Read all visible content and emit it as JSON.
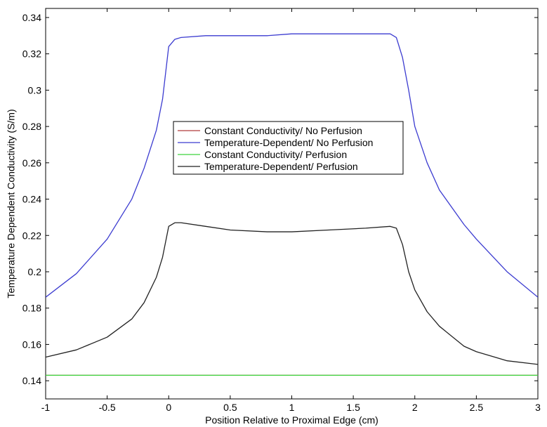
{
  "chart_data": {
    "type": "line",
    "xlabel": "Position Relative to Proximal Edge (cm)",
    "ylabel": "Temperature Dependent Conductivity (S/m)",
    "xlim": [
      -1,
      3
    ],
    "ylim": [
      0.13,
      0.345
    ],
    "xticks": [
      -1,
      -0.5,
      0,
      0.5,
      1,
      1.5,
      2,
      2.5,
      3
    ],
    "xtick_labels": [
      "-1",
      "-0.5",
      "0",
      "0.5",
      "1",
      "1.5",
      "2",
      "2.5",
      "3"
    ],
    "yticks": [
      0.14,
      0.16,
      0.18,
      0.2,
      0.22,
      0.24,
      0.26,
      0.28,
      0.3,
      0.32,
      0.34
    ],
    "ytick_labels": [
      "0.14",
      "0.16",
      "0.18",
      "0.2",
      "0.22",
      "0.24",
      "0.26",
      "0.28",
      "0.3",
      "0.32",
      "0.34"
    ],
    "grid": false,
    "legend_position": "center-left",
    "series": [
      {
        "name": "Constant Conductivity/ No Perfusion",
        "color": "#b03a3a",
        "x": [
          -1,
          3
        ],
        "y": [
          0.143,
          0.143
        ]
      },
      {
        "name": "Temperature-Dependent/ No Perfusion",
        "color": "#3b3bd0",
        "x": [
          -1,
          -0.75,
          -0.5,
          -0.3,
          -0.2,
          -0.1,
          -0.05,
          0,
          0.05,
          0.1,
          0.3,
          0.5,
          0.8,
          1.0,
          1.3,
          1.6,
          1.8,
          1.85,
          1.9,
          1.95,
          2.0,
          2.1,
          2.2,
          2.4,
          2.5,
          2.75,
          3
        ],
        "y": [
          0.186,
          0.199,
          0.218,
          0.24,
          0.257,
          0.278,
          0.295,
          0.324,
          0.328,
          0.329,
          0.33,
          0.33,
          0.33,
          0.331,
          0.331,
          0.331,
          0.331,
          0.329,
          0.318,
          0.3,
          0.28,
          0.26,
          0.245,
          0.226,
          0.218,
          0.2,
          0.186
        ]
      },
      {
        "name": "Constant Conductivity/ Perfusion",
        "color": "#3ed33e",
        "x": [
          -1,
          3
        ],
        "y": [
          0.143,
          0.143
        ]
      },
      {
        "name": "Temperature-Dependent/ Perfusion",
        "color": "#222222",
        "x": [
          -1,
          -0.75,
          -0.5,
          -0.3,
          -0.2,
          -0.1,
          -0.05,
          0,
          0.05,
          0.1,
          0.3,
          0.5,
          0.8,
          1.0,
          1.3,
          1.6,
          1.8,
          1.85,
          1.9,
          1.95,
          2.0,
          2.1,
          2.2,
          2.4,
          2.5,
          2.75,
          3
        ],
        "y": [
          0.153,
          0.157,
          0.164,
          0.174,
          0.183,
          0.197,
          0.208,
          0.225,
          0.227,
          0.227,
          0.225,
          0.223,
          0.222,
          0.222,
          0.223,
          0.224,
          0.225,
          0.224,
          0.215,
          0.2,
          0.19,
          0.178,
          0.17,
          0.159,
          0.156,
          0.151,
          0.149
        ]
      }
    ]
  }
}
